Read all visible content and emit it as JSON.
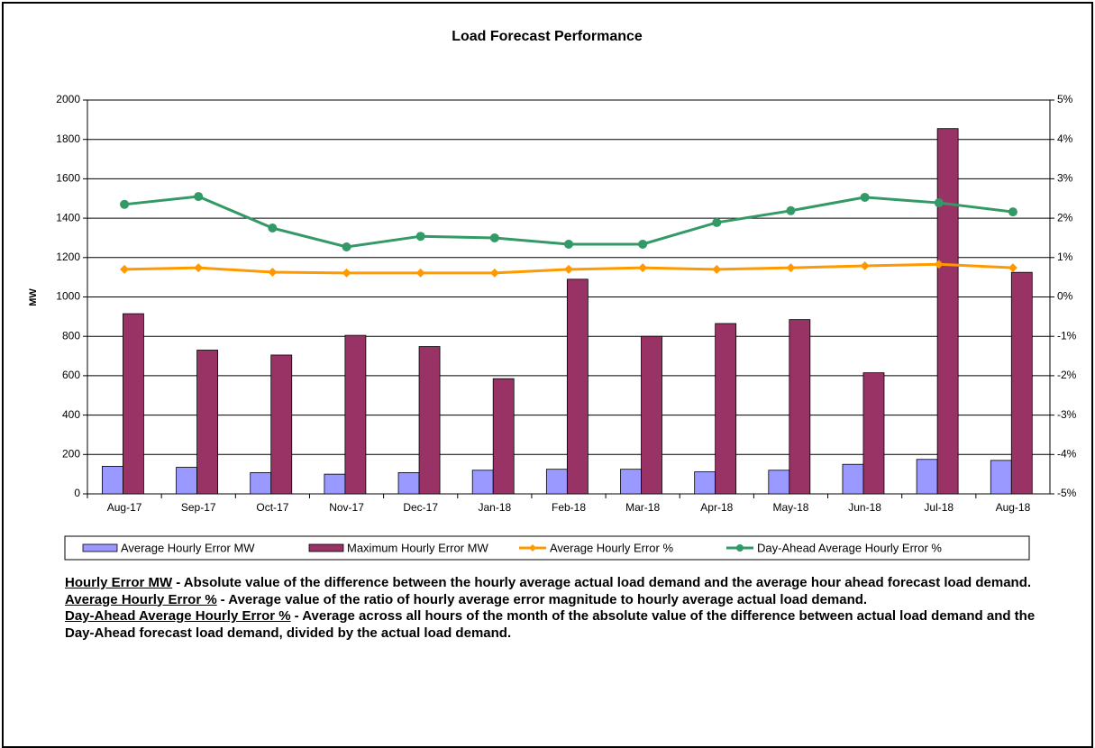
{
  "chart_data": {
    "type": "bar_line_combo",
    "title": "Load Forecast Performance",
    "y_label": "MW",
    "categories": [
      "Aug-17",
      "Sep-17",
      "Oct-17",
      "Nov-17",
      "Dec-17",
      "Jan-18",
      "Feb-18",
      "Mar-18",
      "Apr-18",
      "May-18",
      "Jun-18",
      "Jul-18",
      "Aug-18"
    ],
    "series": [
      {
        "name": "Average Hourly Error MW",
        "color": "#9999ff",
        "kind": "bar",
        "values": [
          140,
          135,
          108,
          100,
          108,
          120,
          125,
          125,
          112,
          120,
          150,
          175,
          170
        ]
      },
      {
        "name": "Maximum Hourly Error MW",
        "color": "#993366",
        "kind": "bar",
        "values": [
          915,
          730,
          705,
          805,
          748,
          585,
          1090,
          800,
          865,
          885,
          615,
          1855,
          1125
        ]
      },
      {
        "name": "Average Hourly Error %",
        "color": "#ff9900",
        "kind": "line",
        "marker": "diamond",
        "axis": "y2",
        "values": [
          0.7,
          0.74,
          0.63,
          0.61,
          0.61,
          0.61,
          0.7,
          0.74,
          0.7,
          0.74,
          0.79,
          0.83,
          0.74
        ]
      },
      {
        "name": "Day-Ahead Average Hourly Error %",
        "color": "#339966",
        "kind": "line",
        "marker": "circle",
        "axis": "y2",
        "values": [
          2.35,
          2.55,
          1.75,
          1.27,
          1.54,
          1.5,
          1.34,
          1.34,
          1.89,
          2.19,
          2.53,
          2.39,
          2.16
        ]
      }
    ],
    "ylim": [
      0,
      2000
    ],
    "yticks": [
      0,
      200,
      400,
      600,
      800,
      1000,
      1200,
      1400,
      1600,
      1800,
      2000
    ],
    "y2lim": [
      -5,
      5
    ],
    "y2ticks": [
      {
        "value": -5,
        "label": "-5%"
      },
      {
        "value": -4,
        "label": "-4%"
      },
      {
        "value": -3,
        "label": "-3%"
      },
      {
        "value": -2,
        "label": "-2%"
      },
      {
        "value": -1,
        "label": "-1%"
      },
      {
        "value": 0,
        "label": "0%"
      },
      {
        "value": 1,
        "label": "1%"
      },
      {
        "value": 2,
        "label": "2%"
      },
      {
        "value": 3,
        "label": "3%"
      },
      {
        "value": 4,
        "label": "4%"
      },
      {
        "value": 5,
        "label": "5%"
      }
    ],
    "grid": true,
    "legend": "bottom"
  },
  "notes": [
    {
      "term": "Hourly Error MW",
      "text": "- Absolute value of the difference between the hourly average actual load demand and the average hour ahead forecast load demand."
    },
    {
      "term": "Average Hourly Error %",
      "text": "- Average value of the ratio of hourly average error magnitude to hourly average actual load demand."
    },
    {
      "term": "Day-Ahead  Average Hourly Error %",
      "text": "- Average across all hours of the month of the absolute value of the difference between actual load demand and the Day-Ahead  forecast load demand, divided by the actual load demand."
    }
  ]
}
